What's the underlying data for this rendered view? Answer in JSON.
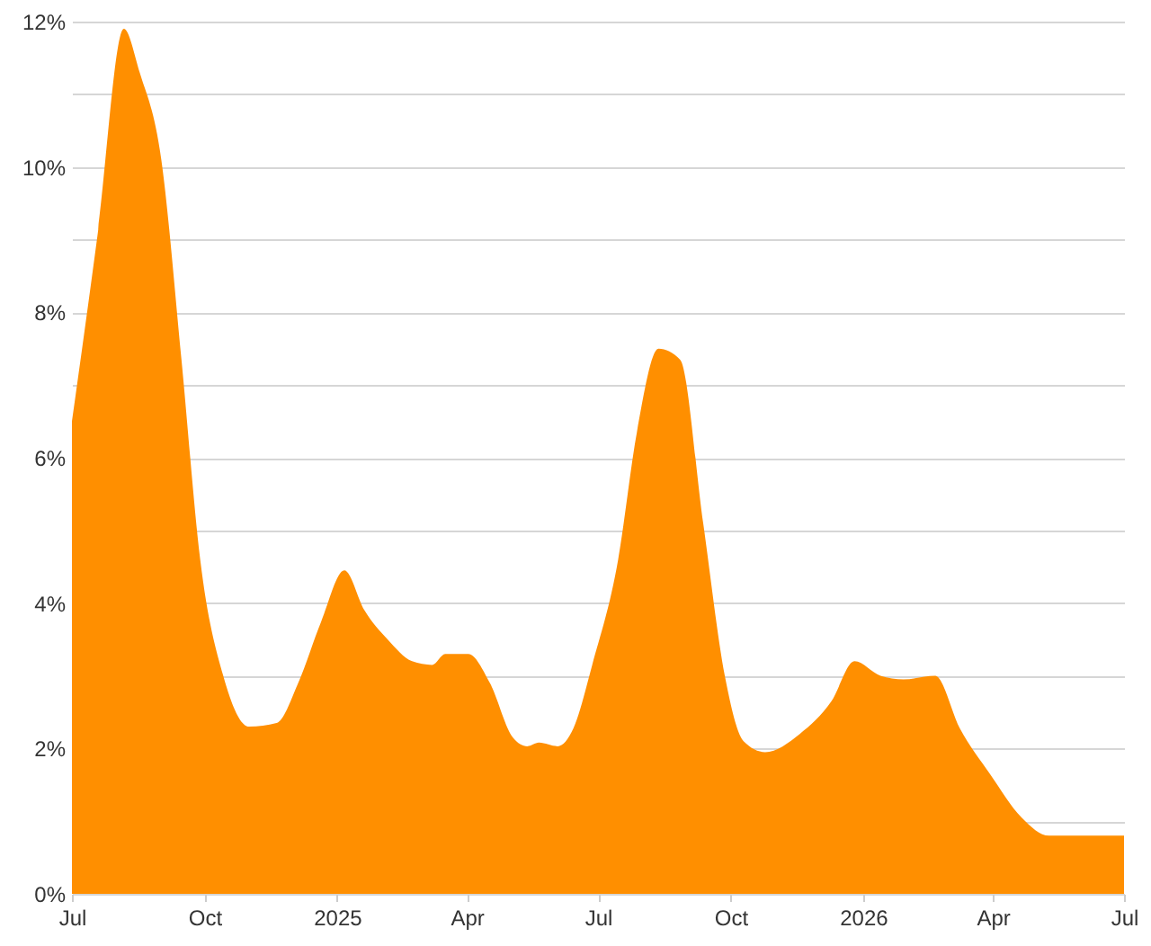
{
  "chart_data": {
    "type": "area",
    "color": "#ff8f00",
    "x": [
      "2024-07-01",
      "2024-07-19",
      "2024-08-06",
      "2024-08-17",
      "2024-09-01",
      "2024-09-15",
      "2024-09-28",
      "2024-10-14",
      "2024-11-01",
      "2024-11-20",
      "2024-12-05",
      "2024-12-21",
      "2025-01-06",
      "2025-01-20",
      "2025-02-05",
      "2025-02-22",
      "2025-03-08",
      "2025-03-17",
      "2025-04-02",
      "2025-04-17",
      "2025-05-03",
      "2025-05-13",
      "2025-05-21",
      "2025-06-03",
      "2025-06-14",
      "2025-06-27",
      "2025-07-15",
      "2025-07-28",
      "2025-08-12",
      "2025-08-27",
      "2025-09-12",
      "2025-09-27",
      "2025-10-10",
      "2025-10-25",
      "2025-11-18",
      "2025-12-10",
      "2025-12-26",
      "2026-01-13",
      "2026-01-29",
      "2026-02-20",
      "2026-03-09",
      "2026-03-30",
      "2026-04-21",
      "2026-05-10",
      "2026-07-01"
    ],
    "values": [
      6.5,
      9.1,
      11.9,
      11.3,
      10.1,
      7.35,
      4.6,
      3.0,
      2.3,
      2.35,
      2.9,
      3.75,
      4.45,
      3.9,
      3.5,
      3.2,
      3.15,
      3.3,
      3.3,
      2.9,
      2.15,
      2.03,
      2.08,
      2.03,
      2.28,
      3.15,
      4.6,
      6.35,
      7.5,
      7.35,
      5.1,
      3.0,
      2.1,
      1.95,
      2.2,
      2.65,
      3.2,
      3.0,
      2.95,
      3.0,
      2.28,
      1.65,
      1.05,
      0.8,
      0.8
    ],
    "xlim": [
      "2024-07-01",
      "2026-07-01"
    ],
    "xticks": [
      {
        "value": "2024-07",
        "label": "Jul"
      },
      {
        "value": "2024-10",
        "label": "Oct"
      },
      {
        "value": "2025-01",
        "label": "2025"
      },
      {
        "value": "2025-04",
        "label": "Apr"
      },
      {
        "value": "2025-07",
        "label": "Jul"
      },
      {
        "value": "2025-10",
        "label": "Oct"
      },
      {
        "value": "2026-01",
        "label": "2026"
      },
      {
        "value": "2026-04",
        "label": "Apr"
      },
      {
        "value": "2026-07",
        "label": "Jul"
      }
    ],
    "ylim": [
      0,
      12
    ],
    "yticks": [
      {
        "value": 0,
        "label": "0%"
      },
      {
        "value": 1,
        "label": null
      },
      {
        "value": 2,
        "label": "2%"
      },
      {
        "value": 3,
        "label": null
      },
      {
        "value": 4,
        "label": "4%"
      },
      {
        "value": 5,
        "label": null
      },
      {
        "value": 6,
        "label": "6%"
      },
      {
        "value": 7,
        "label": null
      },
      {
        "value": 8,
        "label": "8%"
      },
      {
        "value": 9,
        "label": null
      },
      {
        "value": 10,
        "label": "10%"
      },
      {
        "value": 11,
        "label": null
      },
      {
        "value": 12,
        "label": "12%"
      }
    ],
    "grid": "y"
  }
}
